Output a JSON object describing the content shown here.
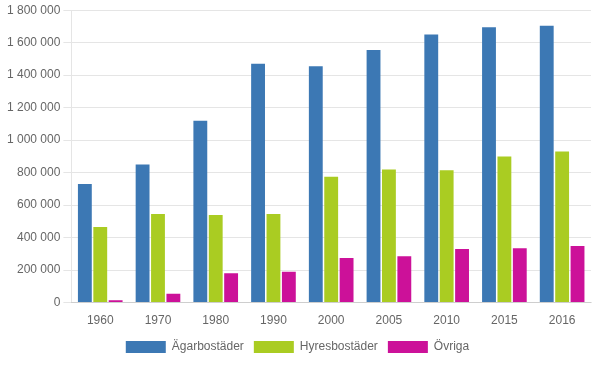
{
  "chart_data": {
    "type": "bar",
    "categories": [
      "1960",
      "1970",
      "1980",
      "1990",
      "2000",
      "2005",
      "2010",
      "2015",
      "2016"
    ],
    "series": [
      {
        "name": "Ägarbostäder",
        "color": "#3C78B4",
        "values": [
          730000,
          850000,
          1120000,
          1470000,
          1455000,
          1555000,
          1650000,
          1695000,
          1705000
        ]
      },
      {
        "name": "Hyresbostäder",
        "color": "#AACC22",
        "values": [
          465000,
          545000,
          540000,
          545000,
          775000,
          820000,
          815000,
          900000,
          930000
        ]
      },
      {
        "name": "Övriga",
        "color": "#CC1199",
        "values": [
          15000,
          55000,
          180000,
          190000,
          275000,
          285000,
          330000,
          335000,
          348000
        ]
      }
    ],
    "ylim": [
      0,
      1800000
    ],
    "yticks": [
      0,
      {
        "value": 200000,
        "label": "200 000"
      },
      {
        "value": 400000,
        "label": "400 000"
      },
      {
        "value": 600000,
        "label": "600 000"
      },
      {
        "value": 800000,
        "label": "800 000"
      },
      {
        "value": 1000000,
        "label": "1 000 000"
      },
      {
        "value": 1200000,
        "label": "1 200 000"
      },
      {
        "value": 1400000,
        "label": "1 400 000"
      },
      {
        "value": 1600000,
        "label": "1 600 000"
      },
      {
        "value": 1800000,
        "label": "1 800 000"
      }
    ],
    "grid": true,
    "legend": "bottom"
  }
}
